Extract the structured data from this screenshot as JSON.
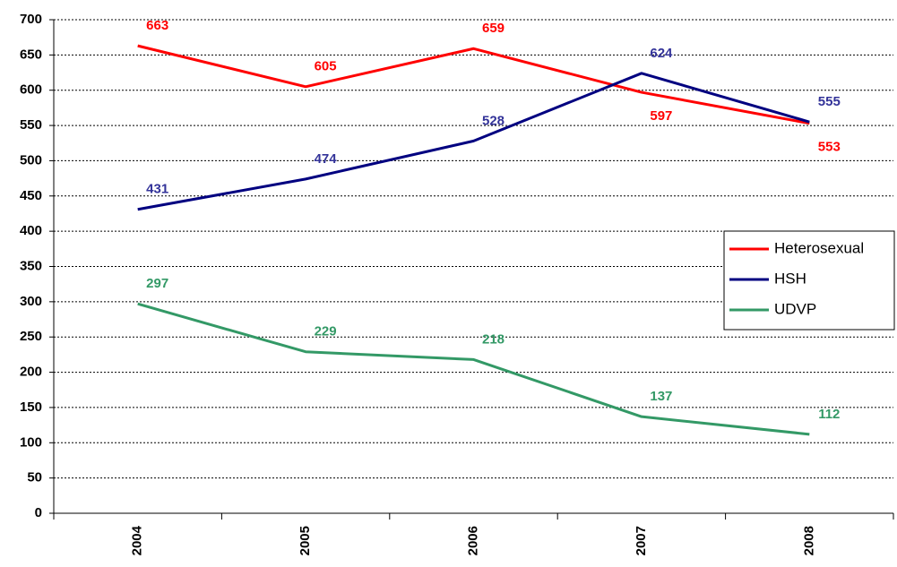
{
  "chart_data": {
    "type": "line",
    "categories": [
      "2004",
      "2005",
      "2006",
      "2007",
      "2008"
    ],
    "series": [
      {
        "name": "Heterosexual",
        "color": "#ff0000",
        "values": [
          663,
          605,
          659,
          597,
          553
        ]
      },
      {
        "name": "HSH",
        "color": "#000080",
        "values": [
          431,
          474,
          528,
          624,
          555
        ]
      },
      {
        "name": "UDVP",
        "color": "#339966",
        "values": [
          297,
          229,
          218,
          137,
          112
        ]
      }
    ],
    "ylim": [
      0,
      700
    ],
    "yticks": [
      0,
      50,
      100,
      150,
      200,
      250,
      300,
      350,
      400,
      450,
      500,
      550,
      600,
      650,
      700
    ],
    "grid": true,
    "legend": "right"
  }
}
